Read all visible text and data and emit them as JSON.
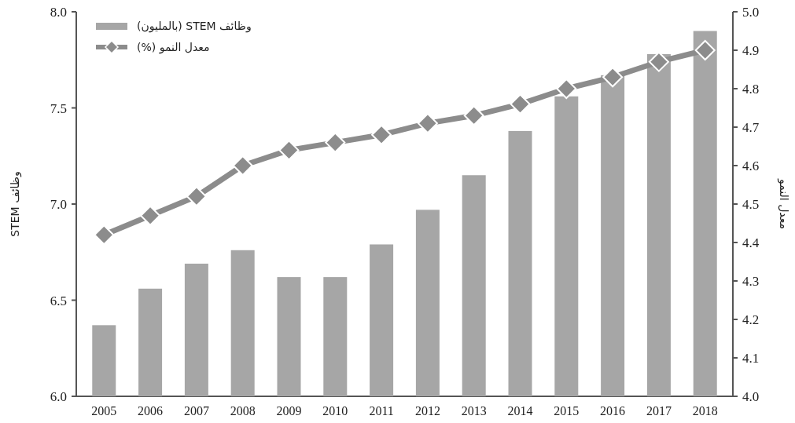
{
  "chart_data": {
    "type": "bar",
    "categories": [
      "2005",
      "2006",
      "2007",
      "2008",
      "2009",
      "2010",
      "2011",
      "2012",
      "2013",
      "2014",
      "2015",
      "2016",
      "2017",
      "2018"
    ],
    "series": [
      {
        "name": "وظائف STEM (بالمليون)",
        "type": "bar",
        "color": "#a6a6a6",
        "values": [
          6.37,
          6.56,
          6.69,
          6.76,
          6.62,
          6.62,
          6.79,
          6.97,
          7.15,
          7.38,
          7.56,
          7.67,
          7.78,
          7.9
        ]
      },
      {
        "name": "معدل النمو (%)",
        "type": "line",
        "axis": "y2",
        "color": "#8c8c8c",
        "values": [
          4.42,
          4.47,
          4.52,
          4.6,
          4.64,
          4.66,
          4.68,
          4.71,
          4.73,
          4.76,
          4.8,
          4.83,
          4.87,
          4.9
        ]
      }
    ],
    "ylabel": "وظائف STEM",
    "y2label": "معدل النمو",
    "ylim": [
      6,
      8
    ],
    "yticks": [
      {
        "value": 6,
        "label": "6.0"
      },
      {
        "value": 6.5,
        "label": "6.5"
      },
      {
        "value": 7,
        "label": "7.0"
      },
      {
        "value": 7.5,
        "label": "7.5"
      },
      {
        "value": 8,
        "label": "8.0"
      }
    ],
    "y2lim": [
      4,
      5
    ],
    "y2ticks": [
      {
        "value": 4,
        "label": "4.0"
      },
      {
        "value": 4.1,
        "label": "4.1"
      },
      {
        "value": 4.2,
        "label": "4.2"
      },
      {
        "value": 4.3,
        "label": "4.3"
      },
      {
        "value": 4.4,
        "label": "4.4"
      },
      {
        "value": 4.5,
        "label": "4.5"
      },
      {
        "value": 4.6,
        "label": "4.6"
      },
      {
        "value": 4.7,
        "label": "4.7"
      },
      {
        "value": 4.8,
        "label": "4.8"
      },
      {
        "value": 4.9,
        "label": "4.9"
      },
      {
        "value": 5,
        "label": "5.0"
      }
    ],
    "legend": "top left",
    "marker": "diamond"
  }
}
